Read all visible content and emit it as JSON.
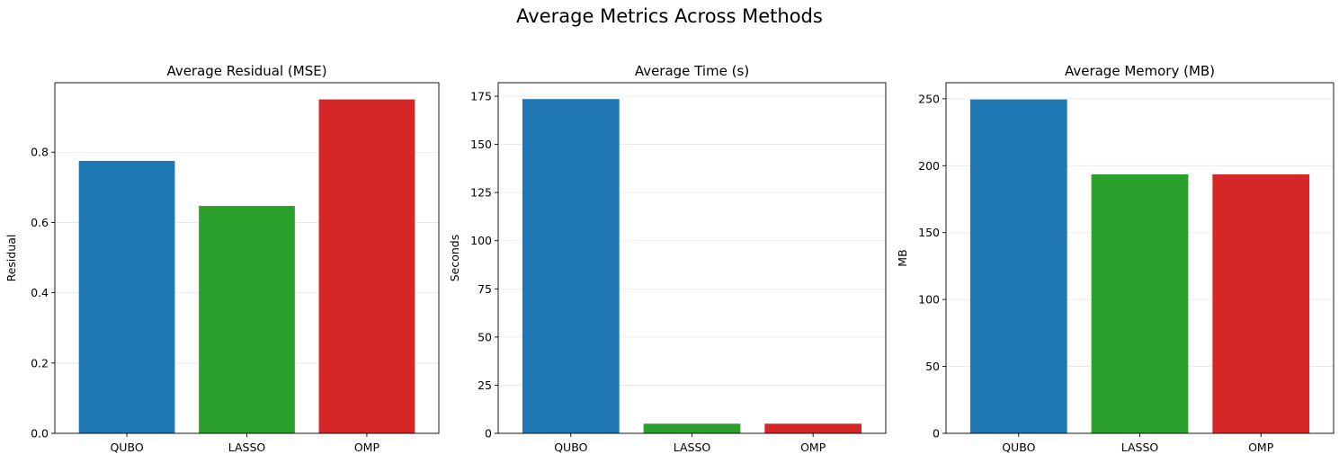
{
  "suptitle": "Average Metrics Across Methods",
  "chart_data": [
    {
      "type": "bar",
      "title": "Average Residual (MSE)",
      "xlabel": "",
      "ylabel": "Residual",
      "categories": [
        "QUBO",
        "LASSO",
        "OMP"
      ],
      "values": [
        0.775,
        0.647,
        0.95
      ],
      "colors": [
        "#1f77b4",
        "#2ca02c",
        "#d62728"
      ],
      "ylim": [
        0,
        0.9975
      ],
      "yticks": [
        0.0,
        0.2,
        0.4,
        0.6,
        0.8
      ],
      "ytick_labels": [
        "0.0",
        "0.2",
        "0.4",
        "0.6",
        "0.8"
      ],
      "grid": "y"
    },
    {
      "type": "bar",
      "title": "Average Time (s)",
      "xlabel": "",
      "ylabel": "Seconds",
      "categories": [
        "QUBO",
        "LASSO",
        "OMP"
      ],
      "values": [
        173.5,
        5.0,
        5.0
      ],
      "colors": [
        "#1f77b4",
        "#2ca02c",
        "#d62728"
      ],
      "ylim": [
        0,
        182
      ],
      "yticks": [
        0,
        25,
        50,
        75,
        100,
        125,
        150,
        175
      ],
      "ytick_labels": [
        "0",
        "25",
        "50",
        "75",
        "100",
        "125",
        "150",
        "175"
      ],
      "grid": "y"
    },
    {
      "type": "bar",
      "title": "Average Memory (MB)",
      "xlabel": "",
      "ylabel": "MB",
      "categories": [
        "QUBO",
        "LASSO",
        "OMP"
      ],
      "values": [
        249.5,
        193.5,
        193.5
      ],
      "colors": [
        "#1f77b4",
        "#2ca02c",
        "#d62728"
      ],
      "ylim": [
        0,
        262
      ],
      "yticks": [
        0,
        50,
        100,
        150,
        200,
        250
      ],
      "ytick_labels": [
        "0",
        "50",
        "100",
        "150",
        "200",
        "250"
      ],
      "grid": "y"
    }
  ]
}
